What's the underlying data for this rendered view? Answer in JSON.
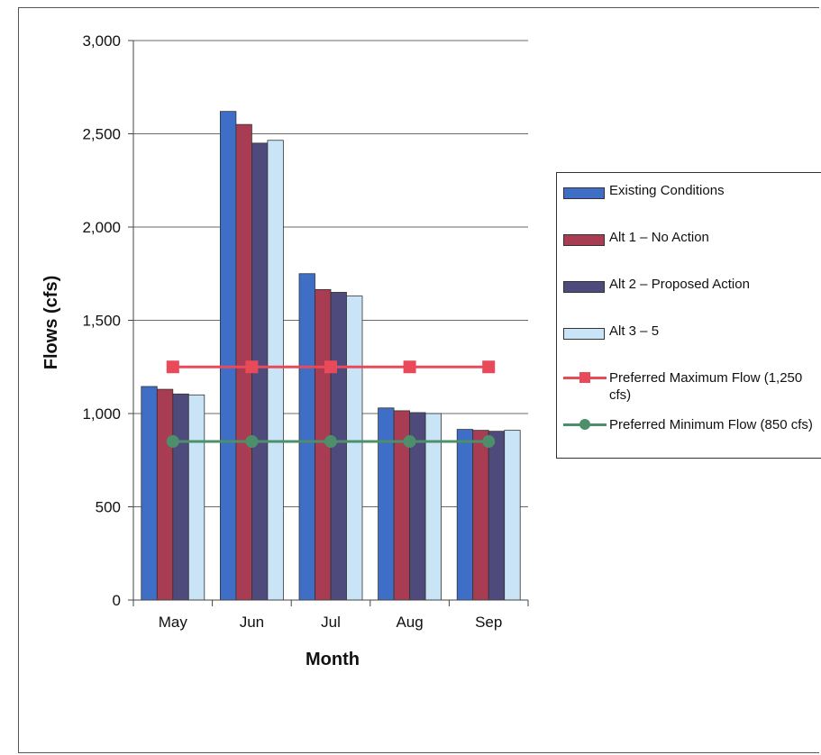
{
  "chart_data": {
    "type": "bar",
    "categories": [
      "May",
      "Jun",
      "Jul",
      "Aug",
      "Sep"
    ],
    "xlabel": "Month",
    "ylabel": "Flows (cfs)",
    "ylim": [
      0,
      3000
    ],
    "yticks": [
      0,
      500,
      1000,
      1500,
      2000,
      2500,
      3000
    ],
    "ytick_labels": [
      "0",
      "500",
      "1,000",
      "1,500",
      "2,000",
      "2,500",
      "3,000"
    ],
    "grid": true,
    "legend_position": "right",
    "series": [
      {
        "name": "Existing Conditions",
        "kind": "bar",
        "color": "#3f6ec6",
        "values": [
          1145,
          2620,
          1750,
          1030,
          915
        ]
      },
      {
        "name": "Alt 1 – No Action",
        "kind": "bar",
        "color": "#a83c52",
        "values": [
          1130,
          2550,
          1665,
          1015,
          910
        ]
      },
      {
        "name": "Alt 2 – Proposed Action",
        "kind": "bar",
        "color": "#4e4a7c",
        "values": [
          1105,
          2450,
          1650,
          1005,
          905
        ]
      },
      {
        "name": "Alt 3 – 5",
        "kind": "bar",
        "color": "#c9e4f7",
        "values": [
          1100,
          2465,
          1630,
          1000,
          910
        ]
      },
      {
        "name": "Preferred Maximum Flow (1,250 cfs)",
        "kind": "line",
        "marker": "square",
        "color": "#e84a5a",
        "values": [
          1250,
          1250,
          1250,
          1250,
          1250
        ]
      },
      {
        "name": "Preferred Minimum Flow (850 cfs)",
        "kind": "line",
        "marker": "circle",
        "color": "#4d8f6b",
        "values": [
          850,
          850,
          850,
          850,
          850
        ]
      }
    ]
  }
}
